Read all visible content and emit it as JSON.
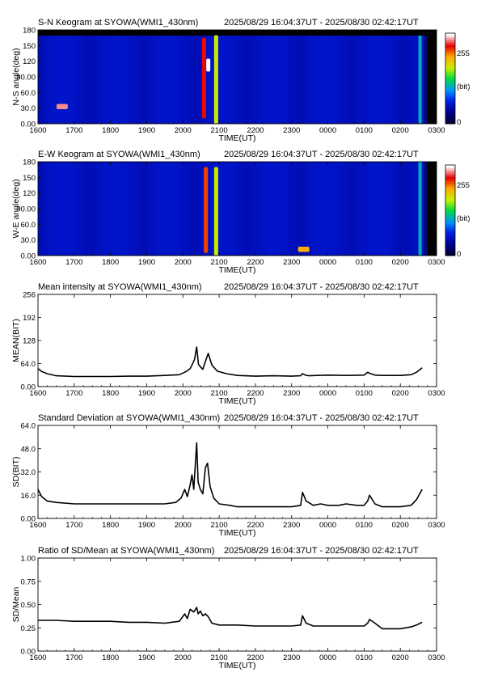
{
  "figure": {
    "station": "SYOWA",
    "time_range": "2025/08/29 16:04:37UT - 2025/08/30 02:42:17UT"
  },
  "x_axis": {
    "label": "TIME(UT)",
    "ticks": [
      "1600",
      "1700",
      "1800",
      "1900",
      "2000",
      "2100",
      "2200",
      "2300",
      "0000",
      "0100",
      "0200",
      "0300"
    ]
  },
  "colorbar": {
    "max_label": "255",
    "unit_label": "(bit)",
    "min_label": "0"
  },
  "chart_data": [
    {
      "type": "heatmap",
      "title": "S-N Keogram at SYOWA(WMI1_430nm)",
      "subtitle": "2025/08/29 16:04:37UT - 2025/08/30 02:42:17UT",
      "xlabel": "TIME(UT)",
      "ylabel": "N-S angle(deg)",
      "yticks": [
        "0.00",
        "30.0",
        "60.0",
        "90.00",
        "120",
        "150",
        "180"
      ],
      "ylim": [
        0,
        180
      ],
      "xlim": [
        "16:00",
        "03:00"
      ],
      "colorscale": "blue-green-yellow-red-white, 0-255 bit",
      "features": [
        {
          "time": "16:40",
          "angle": 33,
          "level": 240
        },
        {
          "time": "20:35",
          "angle_range": [
            10,
            165
          ],
          "level": 220
        },
        {
          "time": "20:42",
          "angle_range": [
            100,
            125
          ],
          "level": 255
        },
        {
          "time": "20:55",
          "angle_range": [
            0,
            170
          ],
          "level": 160
        }
      ]
    },
    {
      "type": "heatmap",
      "title": "E-W Keogram at SYOWA(WMI1_430nm)",
      "subtitle": "2025/08/29 16:04:37UT - 2025/08/30 02:42:17UT",
      "xlabel": "TIME(UT)",
      "ylabel": "W-E angle(deg)",
      "yticks": [
        "0.00",
        "30.0",
        "60.0",
        "90.00",
        "120",
        "150",
        "180"
      ],
      "ylim": [
        0,
        180
      ],
      "xlim": [
        "16:00",
        "03:00"
      ],
      "colorscale": "blue-green-yellow-red-white, 0-255 bit",
      "features": [
        {
          "time": "20:38",
          "angle_range": [
            5,
            170
          ],
          "level": 210
        },
        {
          "time": "20:55",
          "angle_range": [
            0,
            170
          ],
          "level": 160
        },
        {
          "time": "23:20",
          "angle": 12,
          "level": 190
        }
      ]
    },
    {
      "type": "line",
      "title": "Mean intensity at SYOWA(WMI1_430nm)",
      "subtitle": "2025/08/29 16:04:37UT - 2025/08/30 02:42:17UT",
      "xlabel": "TIME(UT)",
      "ylabel": "MEAN(BIT)",
      "yticks": [
        "0.00",
        "64.0",
        "128",
        "192",
        "256"
      ],
      "ylim": [
        0,
        256
      ],
      "xlim": [
        16,
        27
      ],
      "series": [
        {
          "x": [
            16.0,
            16.1,
            16.25,
            16.5,
            17.0,
            17.5,
            18.0,
            18.5,
            19.0,
            19.5,
            19.9,
            20.05,
            20.12,
            20.2,
            20.25,
            20.32,
            20.38,
            20.43,
            20.48,
            20.55,
            20.62,
            20.7,
            20.8,
            20.95,
            21.2,
            21.5,
            22.0,
            22.5,
            23.0,
            23.25,
            23.3,
            23.4,
            23.5,
            23.7,
            24.0,
            24.5,
            25.0,
            25.1,
            25.15,
            25.3,
            25.5,
            25.8,
            26.0,
            26.3,
            26.45,
            26.6
          ],
          "values": [
            50,
            42,
            36,
            30,
            28,
            28,
            28,
            29,
            29,
            31,
            33,
            40,
            44,
            50,
            60,
            75,
            110,
            62,
            55,
            48,
            70,
            92,
            60,
            43,
            36,
            31,
            29,
            30,
            29,
            30,
            36,
            31,
            30,
            31,
            32,
            31,
            32,
            40,
            37,
            32,
            31,
            31,
            31,
            33,
            40,
            52
          ]
        }
      ]
    },
    {
      "type": "line",
      "title": "Standard Deviation at SYOWA(WMI1_430nm)",
      "subtitle": "2025/08/29 16:04:37UT - 2025/08/30 02:42:17UT",
      "xlabel": "TIME(UT)",
      "ylabel": "SD(BIT)",
      "yticks": [
        "0.00",
        "16.0",
        "32.0",
        "48.0",
        "64.0"
      ],
      "ylim": [
        0,
        64
      ],
      "xlim": [
        16,
        27
      ],
      "series": [
        {
          "x": [
            16.0,
            16.1,
            16.25,
            16.5,
            17.0,
            17.5,
            18.0,
            18.5,
            19.0,
            19.5,
            19.8,
            19.95,
            20.05,
            20.12,
            20.2,
            20.25,
            20.3,
            20.38,
            20.42,
            20.48,
            20.55,
            20.62,
            20.68,
            20.75,
            20.85,
            21.0,
            21.3,
            21.5,
            22.0,
            22.5,
            23.0,
            23.25,
            23.3,
            23.4,
            23.6,
            23.8,
            24.0,
            24.3,
            24.5,
            24.8,
            25.0,
            25.1,
            25.15,
            25.3,
            25.5,
            25.8,
            26.0,
            26.3,
            26.45,
            26.6
          ],
          "values": [
            20,
            15,
            12,
            11,
            10,
            10,
            10,
            10,
            10,
            10,
            11,
            14,
            20,
            15,
            23,
            30,
            20,
            52,
            25,
            20,
            17,
            35,
            38,
            22,
            14,
            10,
            9,
            8,
            8,
            8,
            8,
            9,
            18,
            12,
            9,
            10,
            9,
            9,
            10,
            9,
            9,
            12,
            16,
            10,
            8,
            8,
            8,
            9,
            13,
            20
          ]
        }
      ]
    },
    {
      "type": "line",
      "title": "Ratio of SD/Mean at SYOWA(WMI1_430nm)",
      "subtitle": "2025/08/29 16:04:37UT - 2025/08/30 02:42:17UT",
      "xlabel": "TIME(UT)",
      "ylabel": "SD/Mean",
      "yticks": [
        "0.00",
        "0.25",
        "0.50",
        "0.75",
        "1.00"
      ],
      "ylim": [
        0,
        1
      ],
      "xlim": [
        16,
        27
      ],
      "series": [
        {
          "x": [
            16.0,
            16.5,
            17.0,
            17.5,
            18.0,
            18.5,
            19.0,
            19.5,
            19.9,
            20.05,
            20.12,
            20.2,
            20.3,
            20.38,
            20.42,
            20.48,
            20.55,
            20.62,
            20.7,
            20.8,
            21.0,
            21.5,
            22.0,
            22.5,
            23.0,
            23.25,
            23.3,
            23.4,
            23.6,
            24.0,
            24.5,
            25.0,
            25.1,
            25.15,
            25.3,
            25.5,
            25.8,
            26.0,
            26.3,
            26.45,
            26.6
          ],
          "values": [
            0.33,
            0.33,
            0.32,
            0.32,
            0.32,
            0.31,
            0.31,
            0.3,
            0.32,
            0.4,
            0.35,
            0.45,
            0.42,
            0.47,
            0.4,
            0.43,
            0.38,
            0.4,
            0.37,
            0.3,
            0.28,
            0.28,
            0.27,
            0.27,
            0.27,
            0.28,
            0.38,
            0.3,
            0.27,
            0.27,
            0.27,
            0.27,
            0.3,
            0.34,
            0.3,
            0.24,
            0.24,
            0.24,
            0.26,
            0.28,
            0.31
          ]
        }
      ]
    }
  ]
}
